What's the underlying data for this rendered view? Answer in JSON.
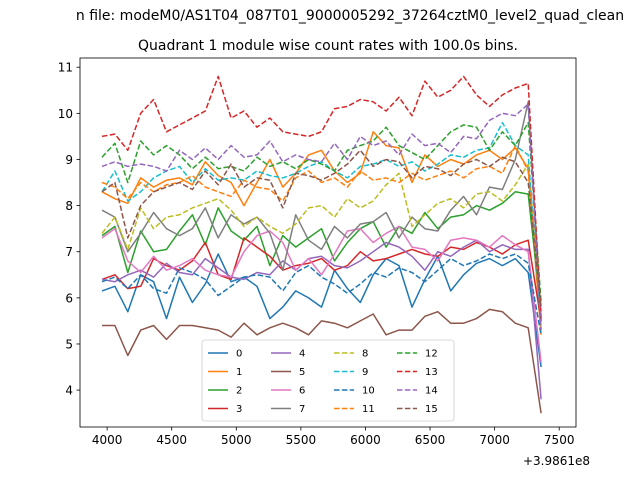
{
  "suptitle": "n file: modeM0/AS1T04_087T01_9000005292_37264cztM0_level2_quad_clean",
  "chart_data": {
    "type": "line",
    "title": "Quadrant 1 module wise count rates with 100.0s bins.",
    "xlabel": "",
    "ylabel": "",
    "x_offset_label": "+3.9861e8",
    "xlim": [
      3790,
      7630
    ],
    "ylim": [
      3.2,
      11.2
    ],
    "xticks": [
      4000,
      4500,
      5000,
      5500,
      6000,
      6500,
      7000,
      7500
    ],
    "xtick_labels": [
      "4000",
      "4500",
      "5000",
      "5500",
      "6000",
      "6500",
      "7000",
      "7500"
    ],
    "yticks": [
      4,
      5,
      6,
      7,
      8,
      9,
      10,
      11
    ],
    "ytick_labels": [
      "4",
      "5",
      "6",
      "7",
      "8",
      "9",
      "10",
      "11"
    ],
    "grid": false,
    "legend": {
      "position": "lower-center",
      "columns": 4
    },
    "x": [
      3960,
      4060,
      4160,
      4260,
      4360,
      4460,
      4560,
      4660,
      4760,
      4860,
      4960,
      5060,
      5160,
      5260,
      5360,
      5460,
      5560,
      5660,
      5760,
      5860,
      5960,
      6060,
      6160,
      6260,
      6360,
      6460,
      6560,
      6660,
      6760,
      6860,
      6960,
      7060,
      7160,
      7260,
      7360
    ],
    "series": [
      {
        "name": "0",
        "color": "#1f77b4",
        "dash": "solid",
        "values": [
          6.15,
          6.25,
          5.7,
          6.5,
          6.35,
          5.55,
          6.45,
          5.9,
          6.3,
          6.95,
          6.35,
          6.45,
          6.25,
          5.55,
          5.8,
          6.15,
          6.0,
          5.8,
          6.6,
          6.2,
          5.9,
          6.5,
          6.85,
          6.7,
          5.8,
          6.4,
          6.9,
          6.15,
          6.5,
          6.75,
          6.85,
          6.7,
          6.85,
          6.55,
          4.5
        ]
      },
      {
        "name": "1",
        "color": "#ff7f0e",
        "dash": "solid",
        "values": [
          8.3,
          8.15,
          8.05,
          8.6,
          8.4,
          8.55,
          8.6,
          8.45,
          8.95,
          8.65,
          8.5,
          8.0,
          8.5,
          9.0,
          8.4,
          8.7,
          9.1,
          9.2,
          8.75,
          8.5,
          8.7,
          9.6,
          9.3,
          9.25,
          8.5,
          9.1,
          8.85,
          9.0,
          8.9,
          9.1,
          9.2,
          9.0,
          9.25,
          8.8,
          5.2
        ]
      },
      {
        "name": "2",
        "color": "#2ca02c",
        "dash": "solid",
        "values": [
          7.35,
          7.55,
          6.55,
          7.45,
          7.0,
          7.05,
          7.45,
          7.8,
          7.15,
          7.95,
          7.45,
          7.25,
          7.55,
          6.7,
          7.35,
          7.1,
          7.3,
          7.5,
          6.8,
          7.2,
          7.5,
          7.65,
          7.1,
          7.55,
          7.4,
          7.85,
          7.5,
          7.75,
          7.8,
          8.0,
          7.9,
          8.05,
          8.3,
          8.25,
          5.7
        ]
      },
      {
        "name": "3",
        "color": "#d62728",
        "dash": "solid",
        "values": [
          6.4,
          6.5,
          6.2,
          6.25,
          6.85,
          6.7,
          6.6,
          6.8,
          7.2,
          6.5,
          6.4,
          7.3,
          7.1,
          6.9,
          6.6,
          6.7,
          6.75,
          6.85,
          6.6,
          6.7,
          7.0,
          6.8,
          6.85,
          6.95,
          7.05,
          6.95,
          6.9,
          7.1,
          7.05,
          7.2,
          7.1,
          6.95,
          7.15,
          7.25,
          5.5
        ]
      },
      {
        "name": "4",
        "color": "#9467bd",
        "dash": "solid",
        "values": [
          6.4,
          6.35,
          6.5,
          6.6,
          6.45,
          6.75,
          6.55,
          6.5,
          6.85,
          6.65,
          6.45,
          6.4,
          6.55,
          6.5,
          6.8,
          6.6,
          6.85,
          6.9,
          6.7,
          6.65,
          6.8,
          7.0,
          7.2,
          7.1,
          6.9,
          6.6,
          7.0,
          6.9,
          7.1,
          7.25,
          7.0,
          7.15,
          7.05,
          7.05,
          3.8
        ]
      },
      {
        "name": "5",
        "color": "#8c564b",
        "dash": "solid",
        "values": [
          5.4,
          5.4,
          4.75,
          5.3,
          5.4,
          5.1,
          5.4,
          5.4,
          5.35,
          5.3,
          5.15,
          5.45,
          5.2,
          5.35,
          5.45,
          5.35,
          5.2,
          5.5,
          5.45,
          5.35,
          5.5,
          5.65,
          5.2,
          5.3,
          5.3,
          5.6,
          5.7,
          5.45,
          5.45,
          5.55,
          5.75,
          5.7,
          5.45,
          5.35,
          3.5
        ]
      },
      {
        "name": "6",
        "color": "#e377c2",
        "dash": "solid",
        "values": [
          7.3,
          7.5,
          6.8,
          6.55,
          6.9,
          6.6,
          6.7,
          6.85,
          6.6,
          6.5,
          6.45,
          7.0,
          7.35,
          7.45,
          7.2,
          6.6,
          6.85,
          6.5,
          6.95,
          7.45,
          7.5,
          7.2,
          7.4,
          7.55,
          7.1,
          7.05,
          6.8,
          7.25,
          7.3,
          7.25,
          7.1,
          7.35,
          7.15,
          7.0,
          4.6
        ]
      },
      {
        "name": "7",
        "color": "#7f7f7f",
        "dash": "solid",
        "values": [
          7.9,
          7.75,
          7.0,
          7.4,
          7.85,
          7.5,
          7.35,
          7.5,
          7.95,
          7.3,
          7.8,
          7.6,
          7.75,
          7.4,
          6.6,
          7.8,
          7.25,
          7.05,
          7.55,
          7.3,
          7.6,
          7.65,
          7.85,
          7.3,
          7.75,
          7.5,
          7.45,
          7.9,
          8.2,
          7.8,
          8.4,
          8.35,
          9.0,
          10.25,
          5.5
        ]
      },
      {
        "name": "8",
        "color": "#bcbd22",
        "dash": "dashed",
        "values": [
          7.4,
          7.75,
          7.05,
          7.95,
          7.5,
          7.75,
          7.8,
          7.95,
          8.05,
          8.15,
          7.9,
          7.55,
          7.75,
          7.55,
          7.4,
          7.6,
          7.95,
          8.0,
          7.75,
          8.15,
          7.95,
          8.1,
          8.45,
          8.7,
          7.55,
          7.8,
          8.05,
          8.15,
          7.95,
          8.25,
          8.3,
          8.1,
          8.45,
          8.9,
          5.9
        ]
      },
      {
        "name": "9",
        "color": "#17becf",
        "dash": "dashed",
        "values": [
          8.3,
          8.75,
          8.1,
          8.3,
          8.6,
          8.75,
          8.85,
          8.5,
          8.8,
          8.55,
          8.6,
          8.55,
          8.75,
          8.65,
          8.6,
          8.7,
          8.85,
          8.95,
          8.75,
          8.6,
          8.85,
          8.9,
          9.0,
          8.85,
          8.95,
          8.75,
          8.9,
          9.1,
          9.05,
          9.2,
          9.25,
          9.8,
          9.3,
          9.1,
          5.4
        ]
      },
      {
        "name": "10",
        "color": "#1f77b4",
        "dash": "dashed",
        "values": [
          6.35,
          6.45,
          6.2,
          6.5,
          6.2,
          6.1,
          6.65,
          6.55,
          6.4,
          6.05,
          6.25,
          6.45,
          6.5,
          6.45,
          6.15,
          6.55,
          6.7,
          6.45,
          6.3,
          6.1,
          6.3,
          6.55,
          6.45,
          6.65,
          6.55,
          6.35,
          6.6,
          6.85,
          6.7,
          6.8,
          6.95,
          6.85,
          6.95,
          6.75,
          5.2
        ]
      },
      {
        "name": "11",
        "color": "#ff7f0e",
        "dash": "dashed",
        "values": [
          8.5,
          8.4,
          8.15,
          8.5,
          8.3,
          8.45,
          8.5,
          8.65,
          8.4,
          8.3,
          8.2,
          8.55,
          8.4,
          8.35,
          8.1,
          8.6,
          8.75,
          8.5,
          8.6,
          8.4,
          8.75,
          8.55,
          8.6,
          8.5,
          8.7,
          8.55,
          8.65,
          8.75,
          8.6,
          8.8,
          8.85,
          8.7,
          9.3,
          8.75,
          5.6
        ]
      },
      {
        "name": "12",
        "color": "#2ca02c",
        "dash": "dashed",
        "values": [
          9.05,
          9.35,
          8.5,
          9.4,
          9.1,
          9.3,
          9.1,
          8.8,
          9.05,
          8.8,
          8.85,
          8.75,
          9.05,
          8.85,
          8.95,
          8.8,
          9.0,
          8.9,
          8.75,
          9.2,
          9.3,
          9.4,
          9.7,
          9.3,
          9.15,
          9.0,
          9.3,
          9.6,
          9.75,
          9.7,
          9.2,
          9.6,
          9.3,
          9.8,
          5.9
        ]
      },
      {
        "name": "13",
        "color": "#d62728",
        "dash": "dashed",
        "values": [
          9.5,
          9.55,
          9.2,
          10.0,
          10.3,
          9.6,
          9.75,
          9.9,
          10.05,
          10.8,
          9.9,
          10.05,
          9.7,
          9.9,
          9.6,
          9.55,
          9.5,
          9.6,
          10.1,
          10.15,
          10.3,
          10.25,
          10.05,
          10.35,
          9.95,
          10.7,
          10.35,
          10.5,
          10.8,
          10.4,
          10.15,
          10.4,
          10.55,
          10.65,
          5.5
        ]
      },
      {
        "name": "14",
        "color": "#9467bd",
        "dash": "dashed",
        "values": [
          8.85,
          8.95,
          8.85,
          8.9,
          8.85,
          8.75,
          9.2,
          9.0,
          9.25,
          9.0,
          9.3,
          9.05,
          9.1,
          9.4,
          8.95,
          9.1,
          9.0,
          8.95,
          9.35,
          9.0,
          9.5,
          9.3,
          9.4,
          9.1,
          9.55,
          9.3,
          9.35,
          9.15,
          9.5,
          9.45,
          9.85,
          10.0,
          9.95,
          10.2,
          5.3
        ]
      },
      {
        "name": "15",
        "color": "#8c564b",
        "dash": "dashed",
        "values": [
          8.3,
          8.5,
          7.3,
          8.0,
          8.3,
          8.4,
          8.5,
          8.35,
          8.75,
          8.45,
          8.9,
          8.4,
          8.6,
          8.55,
          7.95,
          8.7,
          8.65,
          8.55,
          8.7,
          8.9,
          9.2,
          8.85,
          9.0,
          8.95,
          8.6,
          8.85,
          8.8,
          8.65,
          8.9,
          9.0,
          8.85,
          9.05,
          8.95,
          8.5,
          5.8
        ]
      }
    ]
  }
}
